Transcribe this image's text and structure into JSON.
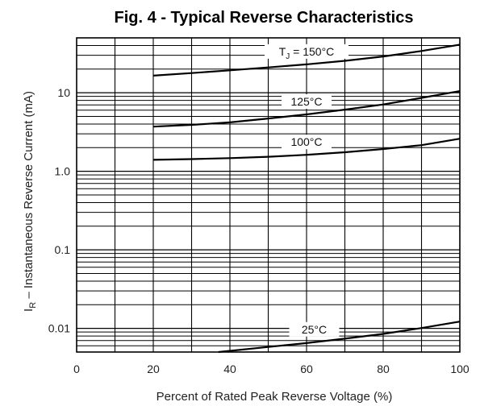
{
  "chart_data": {
    "type": "line",
    "title": "Fig. 4 - Typical Reverse Characteristics",
    "xlabel": "Percent of Rated Peak Reverse Voltage (%)",
    "ylabel": "IR – Instantaneous Reverse Current (mA)",
    "ylabel_main": "I",
    "ylabel_sub": "R",
    "ylabel_rest": " – Instantaneous Reverse Current (mA)",
    "xlim": [
      0,
      100
    ],
    "ylim": [
      0.005,
      50
    ],
    "y_scale": "log",
    "grid": true,
    "x_ticks": [
      "0",
      "20",
      "40",
      "60",
      "80",
      "100"
    ],
    "y_ticks": [
      {
        "value": 0.01,
        "label": "0.01"
      },
      {
        "value": 0.1,
        "label": "0.1"
      },
      {
        "value": 1.0,
        "label": "1.0"
      },
      {
        "value": 10,
        "label": "10"
      }
    ],
    "series": [
      {
        "name": "TJ = 150°C",
        "label_main": "T",
        "label_sub": "J",
        "label_rest": " = 150°C",
        "x": [
          20,
          30,
          40,
          50,
          60,
          70,
          80,
          90,
          100
        ],
        "y": [
          16.5,
          17.8,
          19.3,
          21.0,
          23.0,
          25.5,
          29.0,
          34.0,
          41.0
        ]
      },
      {
        "name": "125°C",
        "label_main": "125°C",
        "x": [
          20,
          30,
          40,
          50,
          60,
          70,
          80,
          90,
          100
        ],
        "y": [
          3.7,
          3.9,
          4.2,
          4.7,
          5.3,
          6.1,
          7.1,
          8.6,
          10.5
        ]
      },
      {
        "name": "100°C",
        "label_main": "100°C",
        "x": [
          20,
          30,
          40,
          50,
          60,
          70,
          80,
          90,
          100
        ],
        "y": [
          1.4,
          1.43,
          1.47,
          1.53,
          1.62,
          1.75,
          1.92,
          2.15,
          2.6
        ]
      },
      {
        "name": "25°C",
        "label_main": "25°C",
        "x": [
          37,
          50,
          60,
          70,
          80,
          90,
          100
        ],
        "y": [
          0.005,
          0.0058,
          0.0065,
          0.0074,
          0.0085,
          0.0101,
          0.0122
        ]
      }
    ]
  }
}
